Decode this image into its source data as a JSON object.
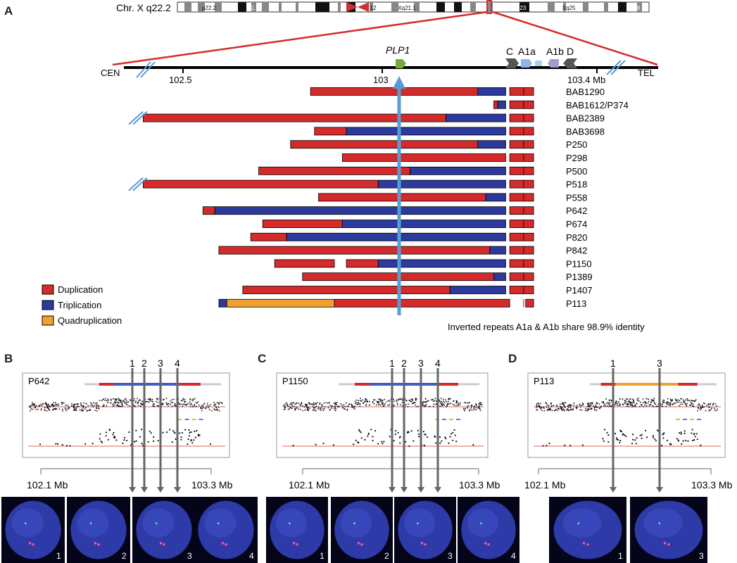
{
  "panels": {
    "a": "A",
    "b": "B",
    "c": "C",
    "d": "D"
  },
  "ideogram": {
    "label": "Chr. X q22.2",
    "bands": [
      "p22.2",
      "21.1",
      "12",
      "Xq21.1",
      "Xq23",
      "q24",
      "Xq25",
      "Xq28"
    ]
  },
  "axis": {
    "cen": "CEN",
    "tel": "TEL",
    "ticks": [
      "102.5",
      "103",
      "103.4 Mb"
    ],
    "gene": "PLP1",
    "repeats": [
      "C",
      "A1a",
      "A1b",
      "D"
    ]
  },
  "chart_data": {
    "type": "table",
    "unit": "Mb",
    "samples": [
      {
        "name": "BAB1290",
        "segments": [
          [
            "dup",
            102.82,
            103.24
          ],
          [
            "trip",
            103.24,
            103.31
          ],
          [
            "dup",
            103.32,
            103.38
          ]
        ]
      },
      {
        "name": "BAB1612/P374",
        "segments": [
          [
            "dup",
            103.28,
            103.29
          ],
          [
            "trip",
            103.29,
            103.31
          ],
          [
            "dup",
            103.32,
            103.38
          ]
        ]
      },
      {
        "name": "BAB2389",
        "segments": [
          [
            "dup",
            102.4,
            103.16
          ],
          [
            "trip",
            103.16,
            103.31
          ],
          [
            "dup",
            103.32,
            103.38
          ]
        ]
      },
      {
        "name": "BAB3698",
        "segments": [
          [
            "dup",
            102.83,
            102.91
          ],
          [
            "trip",
            102.91,
            103.31
          ],
          [
            "dup",
            103.32,
            103.38
          ]
        ]
      },
      {
        "name": "P250",
        "segments": [
          [
            "dup",
            102.77,
            103.24
          ],
          [
            "trip",
            103.24,
            103.31
          ],
          [
            "dup",
            103.32,
            103.38
          ]
        ]
      },
      {
        "name": "P298",
        "segments": [
          [
            "dup",
            102.9,
            103.31
          ],
          [
            "dup",
            103.32,
            103.38
          ]
        ]
      },
      {
        "name": "P500",
        "segments": [
          [
            "dup",
            102.69,
            103.07
          ],
          [
            "trip",
            103.07,
            103.31
          ],
          [
            "dup",
            103.32,
            103.38
          ]
        ]
      },
      {
        "name": "P518",
        "segments": [
          [
            "dup",
            102.4,
            102.99
          ],
          [
            "trip",
            102.99,
            103.31
          ],
          [
            "dup",
            103.32,
            103.38
          ]
        ]
      },
      {
        "name": "P558",
        "segments": [
          [
            "dup",
            102.84,
            103.26
          ],
          [
            "trip",
            103.26,
            103.31
          ],
          [
            "dup",
            103.32,
            103.38
          ]
        ]
      },
      {
        "name": "P642",
        "segments": [
          [
            "dup",
            102.55,
            102.58
          ],
          [
            "trip",
            102.58,
            103.31
          ],
          [
            "dup",
            103.32,
            103.38
          ]
        ]
      },
      {
        "name": "P674",
        "segments": [
          [
            "dup",
            102.7,
            102.9
          ],
          [
            "trip",
            102.9,
            103.31
          ],
          [
            "dup",
            103.32,
            103.38
          ]
        ]
      },
      {
        "name": "P820",
        "segments": [
          [
            "dup",
            102.67,
            102.76
          ],
          [
            "trip",
            102.76,
            103.31
          ],
          [
            "dup",
            103.32,
            103.38
          ]
        ]
      },
      {
        "name": "P842",
        "segments": [
          [
            "dup",
            102.59,
            103.27
          ],
          [
            "trip",
            103.27,
            103.31
          ],
          [
            "dup",
            103.32,
            103.38
          ]
        ]
      },
      {
        "name": "P1150",
        "segments": [
          [
            "dup",
            102.73,
            102.88
          ],
          [
            "dup",
            102.91,
            102.99
          ],
          [
            "trip",
            102.99,
            103.31
          ],
          [
            "dup",
            103.32,
            103.38
          ]
        ]
      },
      {
        "name": "P1389",
        "segments": [
          [
            "dup",
            102.8,
            103.28
          ],
          [
            "trip",
            103.28,
            103.31
          ],
          [
            "dup",
            103.32,
            103.38
          ]
        ]
      },
      {
        "name": "P1407",
        "segments": [
          [
            "dup",
            102.65,
            103.17
          ],
          [
            "trip",
            103.17,
            103.31
          ],
          [
            "dup",
            103.32,
            103.38
          ]
        ]
      },
      {
        "name": "P113",
        "segments": [
          [
            "trip",
            102.59,
            102.61
          ],
          [
            "quad",
            102.61,
            102.88
          ],
          [
            "dup",
            102.88,
            103.32
          ],
          [
            "dup",
            103.36,
            103.38
          ]
        ]
      }
    ]
  },
  "legend": {
    "dup": {
      "label": "Duplication",
      "color": "#d42a2a"
    },
    "trip": {
      "label": "Triplication",
      "color": "#2b3a9c"
    },
    "quad": {
      "label": "Quadruplication",
      "color": "#f0a030"
    }
  },
  "note": "Inverted repeats A1a & A1b share 98.9% identity",
  "arrays": [
    {
      "sample": "P642",
      "probes": [
        "1",
        "2",
        "3",
        "4"
      ],
      "left": "102.1 Mb",
      "right": "103.3 Mb",
      "cells": [
        "1",
        "2",
        "3",
        "4"
      ]
    },
    {
      "sample": "P1150",
      "probes": [
        "1",
        "2",
        "3",
        "4"
      ],
      "left": "102.1 Mb",
      "right": "103.3 Mb",
      "cells": [
        "1",
        "2",
        "3",
        "4"
      ]
    },
    {
      "sample": "P113",
      "probes": [
        "1",
        "3"
      ],
      "left": "102.1 Mb",
      "right": "103.3 Mb",
      "cells": [
        "1",
        "3"
      ]
    }
  ]
}
